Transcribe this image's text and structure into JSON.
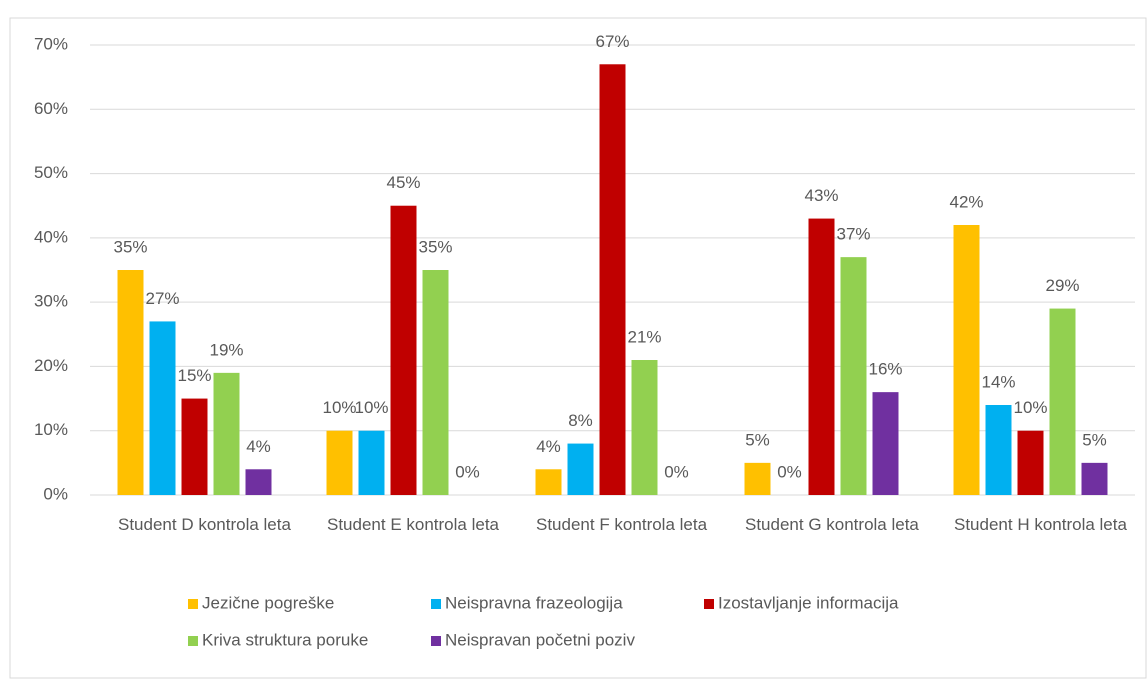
{
  "chart_data": {
    "type": "bar",
    "categories": [
      "Student D kontrola leta",
      "Student E kontrola leta",
      "Student F kontrola leta",
      "Student G kontrola leta",
      "Student H kontrola leta"
    ],
    "series": [
      {
        "name": "Jezične pogreške",
        "color": "#FFC000",
        "values": [
          35,
          10,
          4,
          5,
          42
        ],
        "value_labels": [
          "35%",
          "10%",
          "4%",
          "5%",
          "42%"
        ]
      },
      {
        "name": "Neispravna frazeologija",
        "color": "#00B0F0",
        "values": [
          27,
          10,
          8,
          0,
          14
        ],
        "value_labels": [
          "27%",
          "10%",
          "8%",
          "0%",
          "14%"
        ]
      },
      {
        "name": "Izostavljanje informacija",
        "color": "#C00000",
        "values": [
          15,
          45,
          67,
          43,
          10
        ],
        "value_labels": [
          "15%",
          "45%",
          "67%",
          "43%",
          "10%"
        ]
      },
      {
        "name": "Kriva struktura poruke",
        "color": "#92D050",
        "values": [
          19,
          35,
          21,
          37,
          29
        ],
        "value_labels": [
          "19%",
          "35%",
          "21%",
          "37%",
          "29%"
        ]
      },
      {
        "name": "Neispravan početni poziv",
        "color": "#7030A0",
        "values": [
          4,
          0,
          0,
          16,
          5
        ],
        "value_labels": [
          "4%",
          "0%",
          "0%",
          "16%",
          "5%"
        ]
      }
    ],
    "ylim": [
      0,
      70
    ],
    "yticks": [
      {
        "value": 0,
        "label": "0%"
      },
      {
        "value": 10,
        "label": "10%"
      },
      {
        "value": 20,
        "label": "20%"
      },
      {
        "value": 30,
        "label": "30%"
      },
      {
        "value": 40,
        "label": "40%"
      },
      {
        "value": 50,
        "label": "50%"
      },
      {
        "value": 60,
        "label": "60%"
      },
      {
        "value": 70,
        "label": "70%"
      }
    ],
    "grid": true,
    "legend": "bottom"
  }
}
